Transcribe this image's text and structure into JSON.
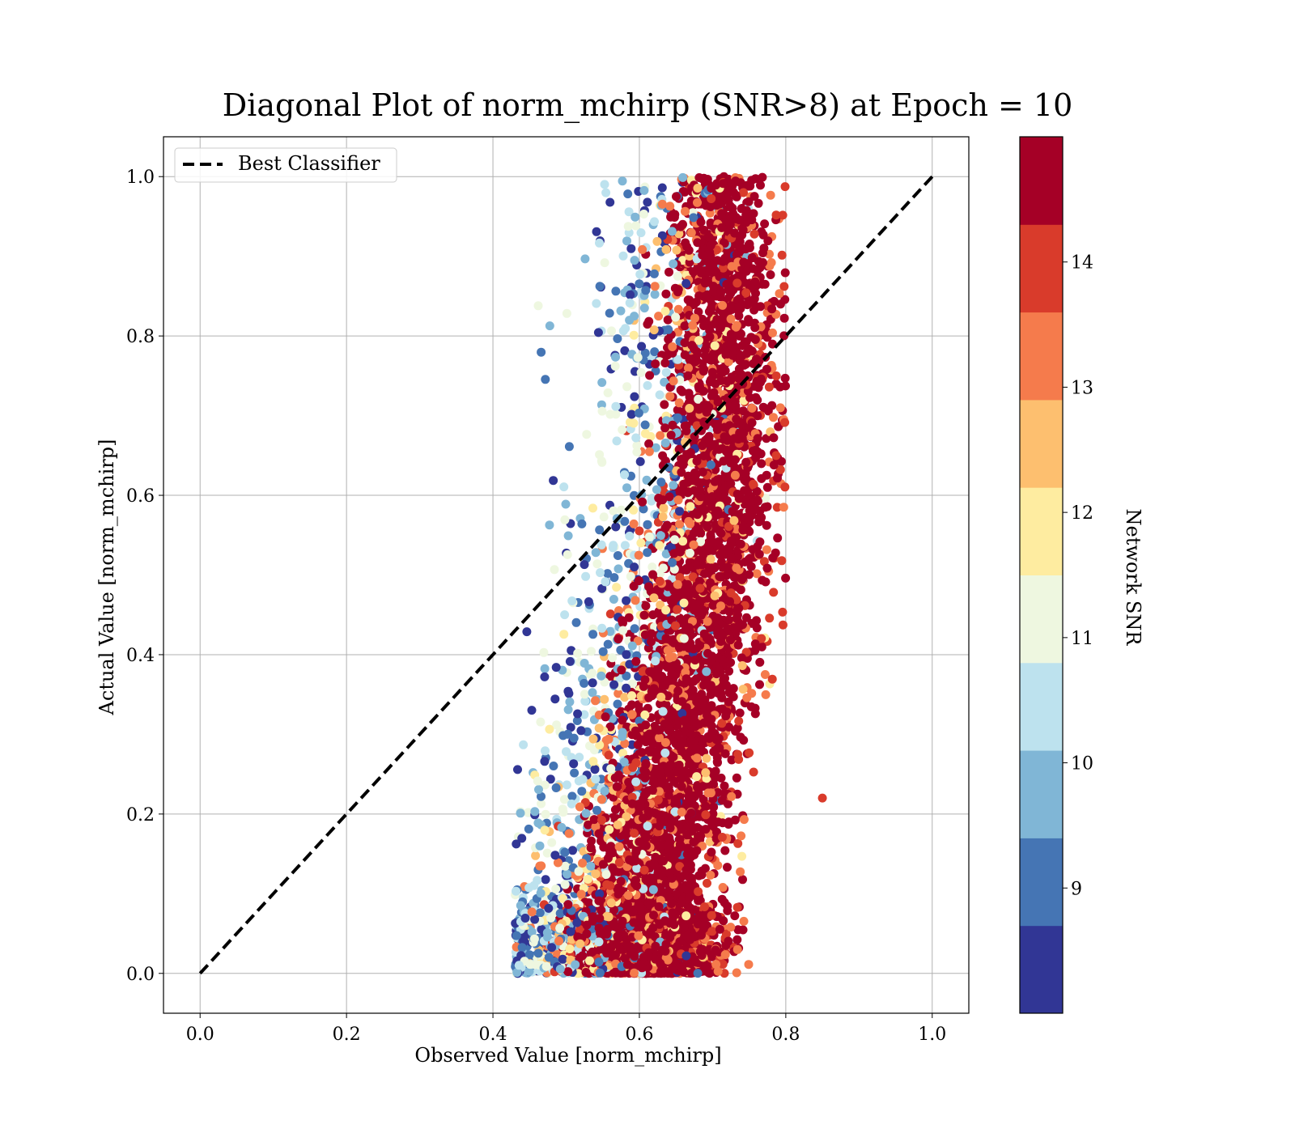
{
  "chart_data": {
    "type": "scatter",
    "title": "Diagonal Plot of norm_mchirp (SNR>8) at Epoch = 10",
    "xlabel": "Observed Value [norm_mchirp]",
    "ylabel": "Actual Value [norm_mchirp]",
    "xlim": [
      -0.05,
      1.05
    ],
    "ylim": [
      -0.05,
      1.05
    ],
    "xticks": [
      "0.0",
      "0.2",
      "0.4",
      "0.6",
      "0.8",
      "1.0"
    ],
    "yticks": [
      "0.0",
      "0.2",
      "0.4",
      "0.6",
      "0.8",
      "1.0"
    ],
    "grid": true,
    "legend": {
      "position": "top-left",
      "entries": [
        {
          "label": "Best Classifier",
          "style": "dashed",
          "color": "#000000"
        }
      ]
    },
    "reference_line": {
      "name": "Best Classifier",
      "x": [
        0.0,
        1.0
      ],
      "y": [
        0.0,
        1.0
      ],
      "style": "dashed"
    },
    "colorbar": {
      "label": "Network SNR",
      "range": [
        8,
        15
      ],
      "ticks": [
        "9",
        "10",
        "11",
        "12",
        "13",
        "14"
      ],
      "colors": [
        "#313695",
        "#4575b4",
        "#80b6d6",
        "#bde2ee",
        "#eef7e0",
        "#feeca0",
        "#fdbf6f",
        "#f57b4c",
        "#d93b2b",
        "#a50026"
      ]
    },
    "scatter_description": {
      "dominant_color": "#a50026",
      "x_range_observed": [
        0.43,
        0.85
      ],
      "y_range_actual": [
        0.0,
        1.0
      ]
    }
  }
}
